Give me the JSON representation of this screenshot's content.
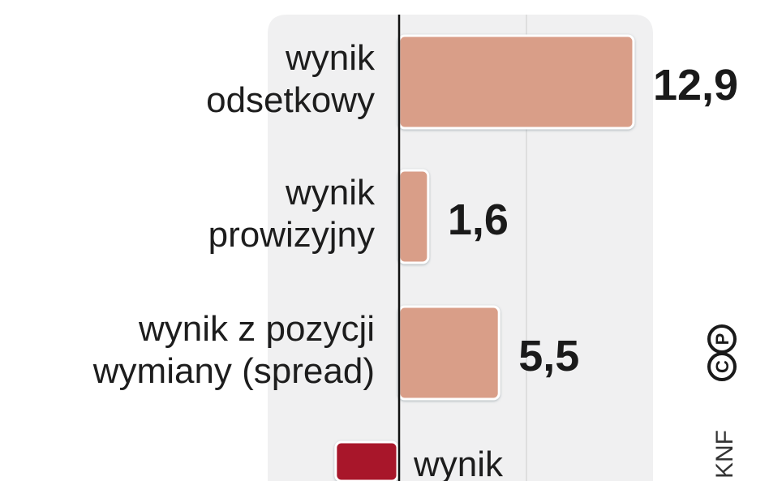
{
  "chart_data": {
    "type": "bar",
    "orientation": "horizontal",
    "categories": [
      [
        "wynik",
        "odsetkowy"
      ],
      [
        "wynik",
        "prowizyjny"
      ],
      [
        "wynik z pozycji",
        "wymiany (spread)"
      ],
      [
        "wynik"
      ]
    ],
    "values": [
      12.9,
      1.6,
      5.5,
      -3.4
    ],
    "value_labels": [
      "12,9",
      "1,6",
      "5,5",
      null
    ],
    "colors": [
      "#d99e88",
      "#d99e88",
      "#d99e88",
      "#a8132a"
    ],
    "xlim": [
      -7,
      14
    ],
    "grid": true,
    "source": "KNF",
    "logo": "CP"
  }
}
